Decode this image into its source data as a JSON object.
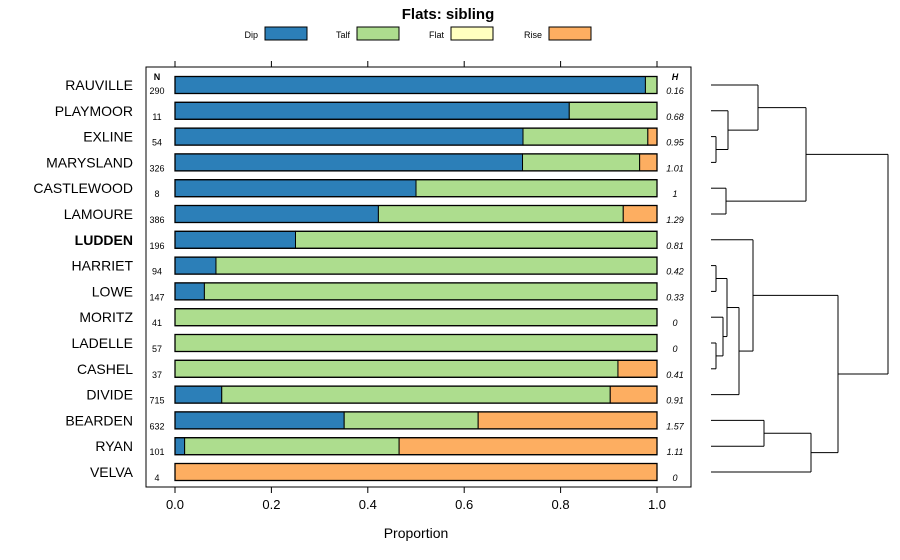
{
  "chart_data": {
    "type": "bar",
    "orientation": "horizontal",
    "stacked": true,
    "title": "Flats: sibling",
    "xlabel": "Proportion",
    "ylabel": "",
    "xlim": [
      0,
      1
    ],
    "x_ticks": [
      "0.0",
      "0.2",
      "0.4",
      "0.6",
      "0.8",
      "1.0"
    ],
    "n_header": "N",
    "h_header": "H",
    "highlighted_category": "LUDDEN",
    "legend": [
      {
        "name": "Dip",
        "color": "#2c7fb8"
      },
      {
        "name": "Talf",
        "color": "#addd8e"
      },
      {
        "name": "Flat",
        "color": "#ffffbf"
      },
      {
        "name": "Rise",
        "color": "#fdae61"
      }
    ],
    "categories": [
      "RAUVILLE",
      "PLAYMOOR",
      "EXLINE",
      "MARYSLAND",
      "CASTLEWOOD",
      "LAMOURE",
      "LUDDEN",
      "HARRIET",
      "LOWE",
      "MORITZ",
      "LADELLE",
      "CASHEL",
      "DIVIDE",
      "BEARDEN",
      "RYAN",
      "VELVA"
    ],
    "n": [
      "290",
      "11",
      "54",
      "326",
      "8",
      "386",
      "196",
      "94",
      "147",
      "41",
      "57",
      "37",
      "715",
      "632",
      "101",
      "4"
    ],
    "h": [
      "0.16",
      "0.68",
      "0.95",
      "1.01",
      "1",
      "1.29",
      "0.81",
      "0.42",
      "0.33",
      "0",
      "0",
      "0.41",
      "0.91",
      "1.57",
      "1.11",
      "0"
    ],
    "series": [
      {
        "name": "Dip",
        "values": [
          0.976,
          0.818,
          0.722,
          0.721,
          0.5,
          0.422,
          0.25,
          0.085,
          0.061,
          0,
          0,
          0,
          0.097,
          0.351,
          0.02,
          0
        ]
      },
      {
        "name": "Talf",
        "values": [
          0.024,
          0.182,
          0.259,
          0.243,
          0.5,
          0.508,
          0.75,
          0.915,
          0.939,
          1,
          1,
          0.919,
          0.806,
          0.278,
          0.445,
          0
        ]
      },
      {
        "name": "Flat",
        "values": [
          0,
          0,
          0,
          0,
          0,
          0,
          0,
          0,
          0,
          0,
          0,
          0,
          0,
          0,
          0,
          0
        ]
      },
      {
        "name": "Rise",
        "values": [
          0,
          0,
          0.019,
          0.036,
          0,
          0.07,
          0,
          0,
          0,
          0,
          0,
          0.081,
          0.097,
          0.371,
          0.535,
          1
        ]
      }
    ]
  }
}
